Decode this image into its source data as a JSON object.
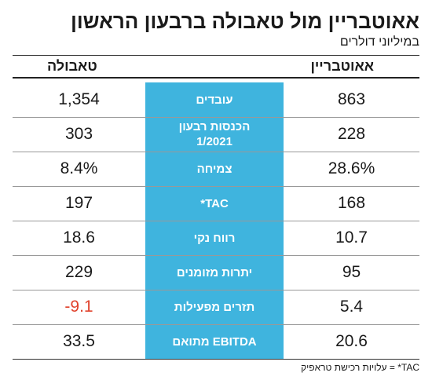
{
  "title": "אאוטבריין מול טאבולה ברבעון הראשון",
  "subtitle": "במיליוני דולרים",
  "chart_data": {
    "type": "table",
    "columns": [
      "אאוטבריין",
      "טאבולה"
    ],
    "rows": [
      {
        "label": "עובדים",
        "outbrain": "863",
        "taboola": "1,354"
      },
      {
        "label": "הכנסות רבעון 1/2021",
        "outbrain": "228",
        "taboola": "303"
      },
      {
        "label": "צמיחה",
        "outbrain": "28.6%",
        "taboola": "8.4%"
      },
      {
        "label": "TAC*",
        "outbrain": "168",
        "taboola": "197"
      },
      {
        "label": "רווח נקי",
        "outbrain": "10.7",
        "taboola": "18.6"
      },
      {
        "label": "יתרות מזומנים",
        "outbrain": "95",
        "taboola": "229"
      },
      {
        "label": "תזרים מפעילות",
        "outbrain": "5.4",
        "taboola": "-9.1"
      },
      {
        "label": "EBITDA מתואם",
        "outbrain": "20.6",
        "taboola": "33.5"
      }
    ]
  },
  "colors": {
    "band": "#3fb4de",
    "negative": "#e0422c"
  },
  "footnote": "TAC* = עלויות רכישת טראפיק"
}
